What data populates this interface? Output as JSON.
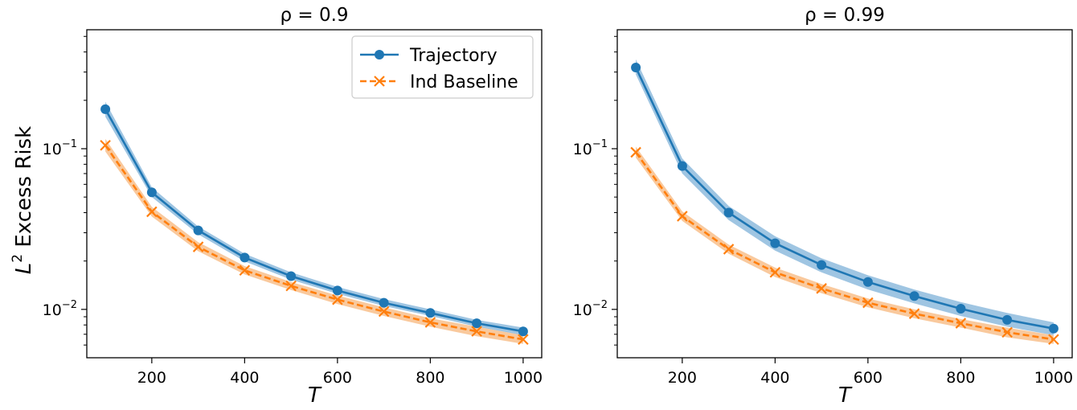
{
  "figure": {
    "ylabel": "L",
    "ylabel_sup": "2",
    "ylabel_rest": " Excess Risk"
  },
  "colors": {
    "trajectory": "#1f77b4",
    "baseline": "#ff7f0e",
    "trajectory_band": "#7fb1d8",
    "baseline_band": "#f7b77c"
  },
  "legend": {
    "placement": "top-right",
    "entries": [
      "Trajectory",
      "Ind Baseline"
    ]
  },
  "chart_data": [
    {
      "type": "line",
      "title": "ρ = 0.9",
      "xlabel": "T",
      "ylabel": "L² Excess Risk",
      "yscale": "log",
      "xlim": [
        60,
        1040
      ],
      "ylim": [
        0.005,
        0.55
      ],
      "xticks": [
        200,
        400,
        600,
        800,
        1000
      ],
      "yticks": [
        {
          "value": 0.1,
          "base": "10",
          "exp": "−1"
        },
        {
          "value": 0.01,
          "base": "10",
          "exp": "−2"
        }
      ],
      "grid": false,
      "legend": "top-right",
      "x": [
        100,
        200,
        300,
        400,
        500,
        600,
        700,
        800,
        900,
        1000
      ],
      "series": [
        {
          "name": "Trajectory",
          "marker": "circle",
          "linestyle": "solid",
          "values": [
            0.176,
            0.0535,
            0.031,
            0.021,
            0.0161,
            0.0131,
            0.011,
            0.0095,
            0.0082,
            0.0073
          ],
          "lower": [
            0.158,
            0.05,
            0.0293,
            0.0199,
            0.0153,
            0.0125,
            0.0105,
            0.0091,
            0.0078,
            0.0069
          ],
          "upper": [
            0.196,
            0.0575,
            0.0328,
            0.0222,
            0.017,
            0.0138,
            0.0116,
            0.01,
            0.0086,
            0.0077
          ]
        },
        {
          "name": "Ind Baseline",
          "marker": "x",
          "linestyle": "dashed",
          "values": [
            0.105,
            0.0405,
            0.0245,
            0.0175,
            0.014,
            0.0115,
            0.0097,
            0.0083,
            0.0073,
            0.0065
          ],
          "lower": [
            0.096,
            0.0378,
            0.023,
            0.0165,
            0.0132,
            0.0108,
            0.0091,
            0.0078,
            0.0068,
            0.0061
          ],
          "upper": [
            0.115,
            0.0434,
            0.0262,
            0.0186,
            0.0148,
            0.0122,
            0.0103,
            0.0088,
            0.0078,
            0.0069
          ]
        }
      ]
    },
    {
      "type": "line",
      "title": "ρ = 0.99",
      "xlabel": "T",
      "ylabel": "",
      "yscale": "log",
      "xlim": [
        60,
        1040
      ],
      "ylim": [
        0.005,
        0.55
      ],
      "xticks": [
        200,
        400,
        600,
        800,
        1000
      ],
      "yticks": [
        {
          "value": 0.1,
          "base": "10",
          "exp": "−1"
        },
        {
          "value": 0.01,
          "base": "10",
          "exp": "−2"
        }
      ],
      "grid": false,
      "x": [
        100,
        200,
        300,
        400,
        500,
        600,
        700,
        800,
        900,
        1000
      ],
      "series": [
        {
          "name": "Trajectory",
          "marker": "circle",
          "linestyle": "solid",
          "values": [
            0.32,
            0.078,
            0.04,
            0.0258,
            0.0189,
            0.0148,
            0.0121,
            0.0101,
            0.0086,
            0.0076
          ],
          "lower": [
            0.29,
            0.07,
            0.036,
            0.0232,
            0.017,
            0.0133,
            0.0109,
            0.0091,
            0.0078,
            0.0069
          ],
          "upper": [
            0.36,
            0.087,
            0.044,
            0.0285,
            0.0208,
            0.0163,
            0.0133,
            0.0111,
            0.0095,
            0.0083
          ]
        },
        {
          "name": "Ind Baseline",
          "marker": "x",
          "linestyle": "dashed",
          "values": [
            0.095,
            0.038,
            0.0237,
            0.017,
            0.0135,
            0.011,
            0.0094,
            0.0082,
            0.0072,
            0.0065
          ],
          "lower": [
            0.088,
            0.0355,
            0.0222,
            0.0159,
            0.0126,
            0.0103,
            0.0088,
            0.0077,
            0.0067,
            0.0061
          ],
          "upper": [
            0.103,
            0.0407,
            0.0253,
            0.0182,
            0.0144,
            0.0117,
            0.01,
            0.0087,
            0.0077,
            0.0069
          ]
        }
      ]
    }
  ]
}
